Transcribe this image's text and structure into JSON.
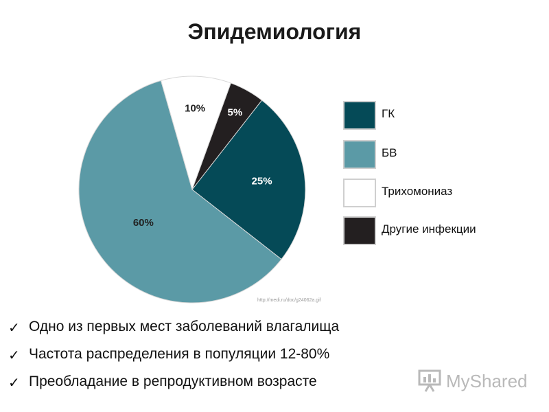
{
  "title": "Эпидемиология",
  "chart_data": {
    "type": "pie",
    "title": "",
    "slices": [
      {
        "label": "ГК",
        "value": 25,
        "display": "25%",
        "color": "#054a57",
        "text_color": "#ffffff"
      },
      {
        "label": "БВ",
        "value": 60,
        "display": "60%",
        "color": "#5b9aa6",
        "text_color": "#222222"
      },
      {
        "label": "Трихомониаз",
        "value": 10,
        "display": "10%",
        "color": "#ffffff",
        "text_color": "#222222"
      },
      {
        "label": "Другие инфекции",
        "value": 5,
        "display": "5%",
        "color": "#231f20",
        "text_color": "#ffffff"
      }
    ],
    "legend_position": "right"
  },
  "source_url": "http://medi.ru/doc/g24062a.gif",
  "bullets": [
    "Одно из первых мест заболеваний влагалища",
    "Частота распределения в популяции 12-80%",
    "Преобладание в репродуктивном возрасте"
  ],
  "check_icon": "checkmark-icon",
  "logo": {
    "text": "MyShared",
    "icon": "presentation-board-icon",
    "color": "#b9b9b9"
  }
}
